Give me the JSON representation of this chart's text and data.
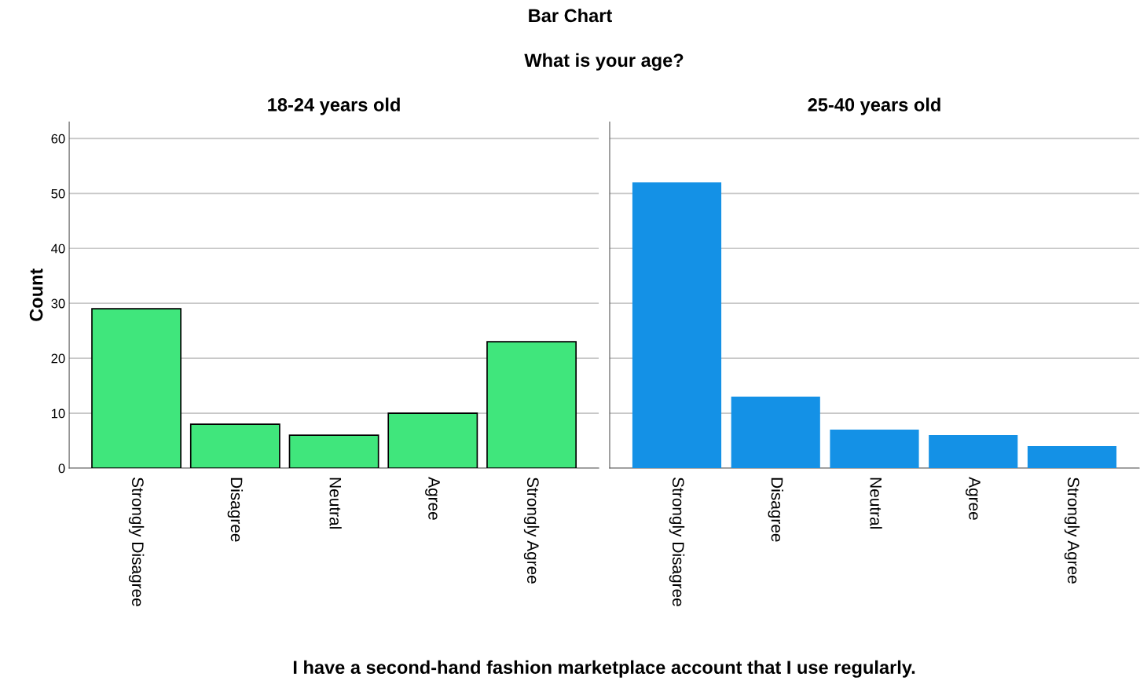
{
  "chart_data": [
    {
      "type": "bar",
      "title": "18-24 years old",
      "ylabel": "Count",
      "xlabel": "I have a second-hand fashion marketplace account that I use regularly.",
      "annotations": [
        "Bar Chart",
        "What is your age?"
      ],
      "categories": [
        "Strongly Disagree",
        "Disagree",
        "Neutral",
        "Agree",
        "Strongly Agree"
      ],
      "series": [
        {
          "color": "#40e67c",
          "values": [
            29,
            8,
            6,
            10,
            23
          ]
        }
      ],
      "ylim": [
        0,
        63
      ],
      "yticks": [
        0,
        10,
        20,
        30,
        40,
        50,
        60
      ],
      "grid": "y"
    },
    {
      "type": "bar",
      "title": "25-40 years old",
      "categories": [
        "Strongly Disagree",
        "Disagree",
        "Neutral",
        "Agree",
        "Strongly Agree"
      ],
      "series": [
        {
          "color": "#1491e6",
          "values": [
            52,
            13,
            7,
            6,
            4
          ]
        }
      ],
      "ylim": [
        0,
        63
      ],
      "yticks": [
        0,
        10,
        20,
        30,
        40,
        50,
        60
      ],
      "grid": "y",
      "tick_labels": "x"
    }
  ]
}
